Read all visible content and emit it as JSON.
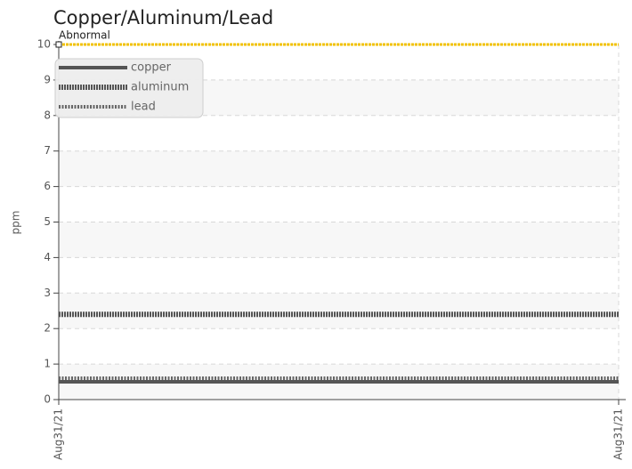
{
  "chart_data": {
    "type": "line",
    "title": "Copper/Aluminum/Lead",
    "y_label": "ppm",
    "categories": [
      "Aug31/21",
      "Aug31/21"
    ],
    "series": [
      {
        "name": "copper",
        "color": "#555555",
        "style": "solid",
        "values": [
          0.5,
          0.5
        ]
      },
      {
        "name": "aluminum",
        "color": "#555555",
        "style": "dotted",
        "values": [
          2.4,
          2.4
        ]
      },
      {
        "name": "lead",
        "color": "#666666",
        "style": "dashed",
        "values": [
          0.6,
          0.6
        ]
      }
    ],
    "threshold": {
      "label": "Abnormal",
      "value": 10,
      "color": "#f2c200"
    },
    "ylim": [
      0,
      10
    ],
    "yticks": [
      0,
      1,
      2,
      3,
      4,
      5,
      6,
      7,
      8,
      9,
      10
    ],
    "grid": true,
    "legend": "upper left"
  }
}
